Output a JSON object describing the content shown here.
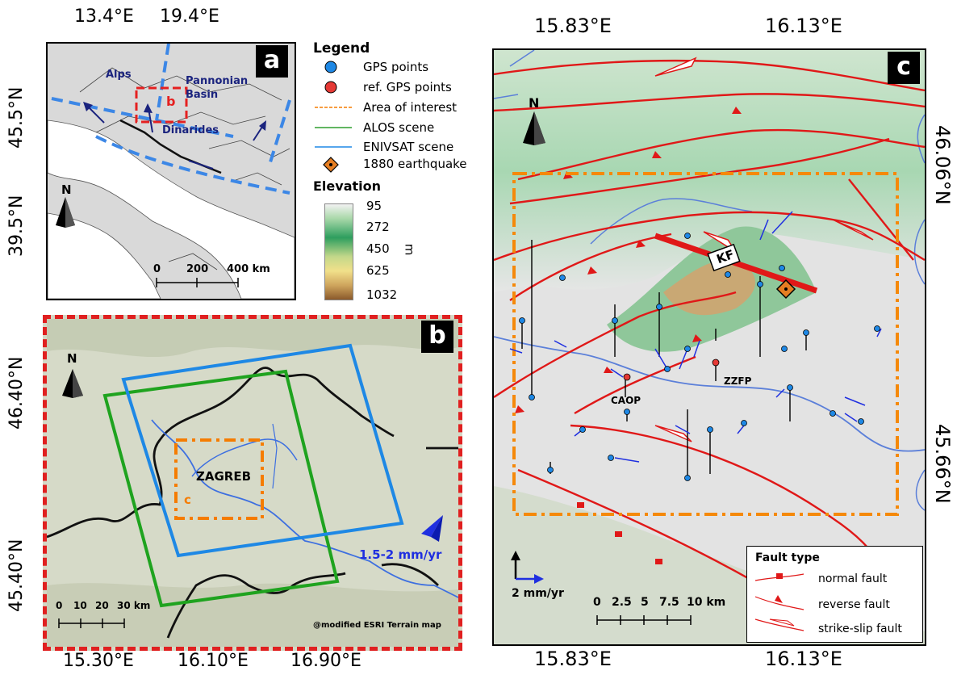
{
  "panel_a": {
    "label": "a",
    "x_ticks": [
      "13.4°E",
      "19.4°E"
    ],
    "y_ticks": [
      "45.5°N",
      "39.5°N"
    ],
    "regions": [
      "Alps",
      "Pannonian Basin",
      "Dinarides"
    ],
    "box_label": "b",
    "north": "N",
    "scale_labels": [
      "0",
      "200",
      "400 km"
    ]
  },
  "legend": {
    "title": "Legend",
    "items": [
      {
        "label": "GPS points",
        "color": "#1e88e5"
      },
      {
        "label": "ref. GPS points",
        "color": "#e53935"
      },
      {
        "label": "Area of interest",
        "color": "#f57c00"
      },
      {
        "label": "ALOS scene",
        "color": "#2e9e2e"
      },
      {
        "label": "ENIVSAT scene",
        "color": "#1e88e5"
      },
      {
        "label": "1880 earthquake",
        "color": "#e67e22"
      }
    ],
    "elevation": {
      "title": "Elevation",
      "unit": "m",
      "ticks": [
        "95",
        "272",
        "450",
        "625",
        "1032"
      ]
    }
  },
  "panel_b": {
    "label": "b",
    "x_ticks": [
      "15.30°E",
      "16.10°E",
      "16.90°E"
    ],
    "y_ticks": [
      "46.40°N",
      "45.40°N"
    ],
    "city": "ZAGREB",
    "box_label": "c",
    "velocity": "1.5-2 mm/yr",
    "north": "N",
    "scale_labels": [
      "0",
      "10",
      "20",
      "30 km"
    ],
    "credit": "@modified ESRI Terrain map"
  },
  "panel_c": {
    "label": "c",
    "x_ticks": [
      "15.83°E",
      "16.13°E"
    ],
    "y_ticks": [
      "46.06°N",
      "45.66°N"
    ],
    "fault_label": "KF",
    "stations": [
      "ZZFP",
      "CAOP"
    ],
    "north": "N",
    "arrow_scale": "2 mm/yr",
    "scale_labels": [
      "0",
      "2.5",
      "5",
      "7.5",
      "10 km"
    ],
    "fault_legend": {
      "title": "Fault type",
      "items": [
        "normal fault",
        "reverse fault",
        "strike-slip fault"
      ]
    }
  }
}
